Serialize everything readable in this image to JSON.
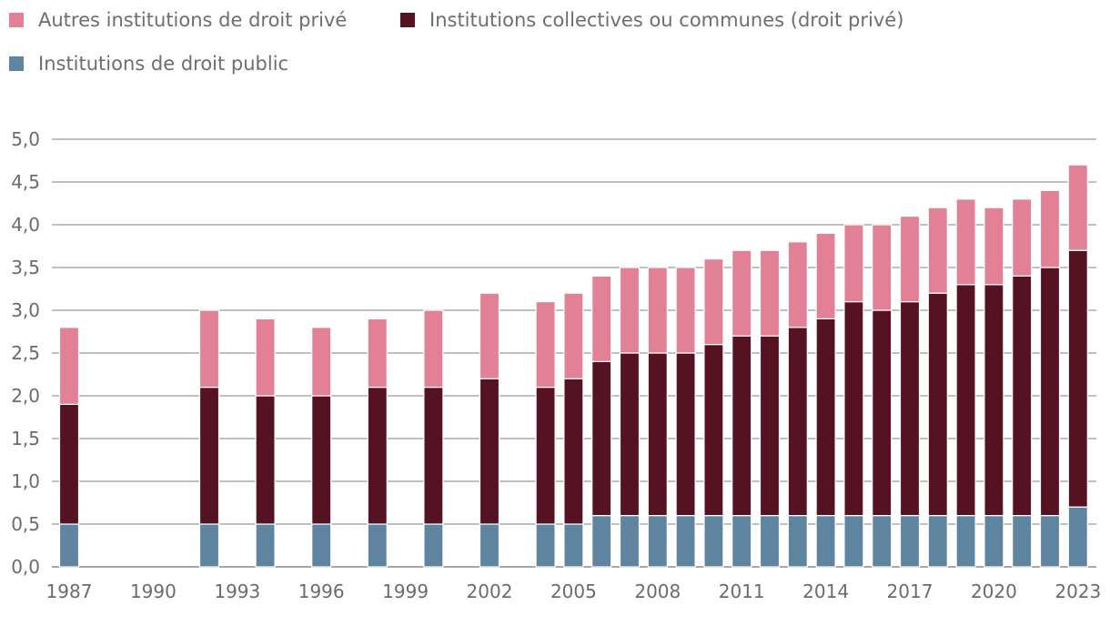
{
  "chart_data": {
    "type": "bar",
    "stacked": true,
    "title": "",
    "xlabel": "",
    "ylabel": "",
    "ylim": [
      0,
      5
    ],
    "ytick_step": 0.5,
    "ytick_labels": [
      "0,0",
      "0,5",
      "1,0",
      "1,5",
      "2,0",
      "2,5",
      "3,0",
      "3,5",
      "4,0",
      "4,5",
      "5,0"
    ],
    "x_range": [
      1987,
      2023
    ],
    "xtick_labels": [
      "1987",
      "1990",
      "1993",
      "1996",
      "1999",
      "2002",
      "2005",
      "2008",
      "2011",
      "2014",
      "2017",
      "2020",
      "2023"
    ],
    "grid": true,
    "legend_position": "top-left",
    "categories": [
      1987,
      1992,
      1994,
      1996,
      1998,
      2000,
      2002,
      2004,
      2005,
      2006,
      2007,
      2008,
      2009,
      2010,
      2011,
      2012,
      2013,
      2014,
      2015,
      2016,
      2017,
      2018,
      2019,
      2020,
      2021,
      2022,
      2023
    ],
    "series": [
      {
        "name": "Institutions de droit public",
        "color": "#5e84a0",
        "values": [
          0.5,
          0.5,
          0.5,
          0.5,
          0.5,
          0.5,
          0.5,
          0.5,
          0.5,
          0.6,
          0.6,
          0.6,
          0.6,
          0.6,
          0.6,
          0.6,
          0.6,
          0.6,
          0.6,
          0.6,
          0.6,
          0.6,
          0.6,
          0.6,
          0.6,
          0.6,
          0.7
        ]
      },
      {
        "name": "Institutions collectives ou communes (droit privé)",
        "color": "#541223",
        "values": [
          1.4,
          1.6,
          1.5,
          1.5,
          1.6,
          1.6,
          1.7,
          1.6,
          1.7,
          1.8,
          1.9,
          1.9,
          1.9,
          2.0,
          2.1,
          2.1,
          2.2,
          2.3,
          2.5,
          2.4,
          2.5,
          2.6,
          2.7,
          2.7,
          2.8,
          2.9,
          3.0
        ]
      },
      {
        "name": "Autres institutions de droit privé",
        "color": "#e28096",
        "values": [
          0.9,
          0.9,
          0.9,
          0.8,
          0.8,
          0.9,
          1.0,
          1.0,
          1.0,
          1.0,
          1.0,
          1.0,
          1.0,
          1.0,
          1.0,
          1.0,
          1.0,
          1.0,
          0.9,
          1.0,
          1.0,
          1.0,
          1.0,
          0.9,
          0.9,
          0.9,
          1.0
        ]
      }
    ],
    "legend_order": [
      2,
      1,
      0
    ]
  }
}
